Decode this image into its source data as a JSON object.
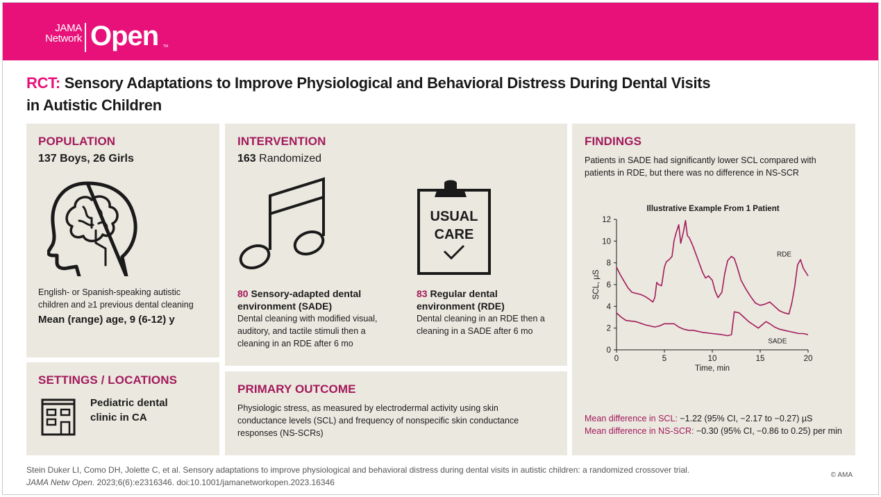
{
  "brand": {
    "top": "JAMA",
    "bottom": "Network",
    "name": "Open",
    "tm": "TM"
  },
  "title": {
    "prefix": "RCT:",
    "line1": "Sensory Adaptations to Improve Physiological and Behavioral Distress During Dental Visits",
    "line2": "in Autistic Children"
  },
  "population": {
    "heading": "POPULATION",
    "counts": "137 Boys, 26 Girls",
    "icon": "head-brain-icon",
    "description": "English- or Spanish-speaking autistic children and ≥1 previous dental cleaning",
    "age": "Mean (range) age, 9 (6-12) y"
  },
  "settings": {
    "heading": "SETTINGS / LOCATIONS",
    "icon": "building-icon",
    "location": "Pediatric dental clinic in CA"
  },
  "intervention": {
    "heading": "INTERVENTION",
    "randomized_n": "163",
    "randomized_label": "Randomized",
    "sade": {
      "icon": "music-note-icon",
      "n": "80",
      "label": "Sensory-adapted dental environment (SADE)",
      "description": "Dental cleaning with modified visual, auditory, and tactile stimuli then a cleaning in an RDE after 6 mo"
    },
    "rde": {
      "icon": "clipboard-check-icon",
      "clipboard_text_1": "USUAL",
      "clipboard_text_2": "CARE",
      "n": "83",
      "label": "Regular dental environment (RDE)",
      "description": "Dental cleaning in an RDE then a cleaning in a SADE after 6 mo"
    }
  },
  "primary_outcome": {
    "heading": "PRIMARY OUTCOME",
    "text": "Physiologic stress, as measured by electrodermal activity using skin conductance levels (SCL) and frequency of nonspecific skin conductance responses (NS-SCRs)"
  },
  "findings": {
    "heading": "FINDINGS",
    "summary": "Patients in SADE had significantly lower SCL compared with patients in RDE, but there was no difference in NS-SCR",
    "result1_label": "Mean difference in SCL:",
    "result1_value": "−1.22 (95% CI, −2.17 to −0.27) µS",
    "result2_label": "Mean difference in NS-SCR:",
    "result2_value": "−0.30 (95% CI, −0.86 to 0.25) per min"
  },
  "chart_data": {
    "type": "line",
    "title": "Illustrative Example From 1 Patient",
    "xlabel": "Time, min",
    "ylabel": "SCL, µS",
    "xlim": [
      0,
      20
    ],
    "ylim": [
      0,
      12
    ],
    "xticks": [
      "0",
      "5",
      "10",
      "15",
      "20"
    ],
    "yticks": [
      "0",
      "2",
      "4",
      "6",
      "8",
      "10",
      "12"
    ],
    "grid": false,
    "line_color": "#a3195b",
    "series": [
      {
        "name": "RDE",
        "x": [
          0,
          0.4,
          0.8,
          1.2,
          1.6,
          2,
          2.5,
          3,
          3.5,
          3.8,
          4,
          4.2,
          4.4,
          4.7,
          5,
          5.2,
          5.5,
          5.8,
          6,
          6.2,
          6.5,
          6.7,
          7,
          7.2,
          7.4,
          7.6,
          8,
          8.5,
          9,
          9.3,
          9.6,
          10,
          10.3,
          10.6,
          11,
          11.3,
          11.6,
          12,
          12.3,
          12.6,
          13,
          13.5,
          14,
          14.5,
          15,
          15.5,
          16,
          16.5,
          17,
          17.5,
          18,
          18.3,
          18.6,
          18.9,
          19.2,
          19.5,
          20
        ],
        "y": [
          7.6,
          6.9,
          6.3,
          5.7,
          5.3,
          5.2,
          5.1,
          4.9,
          4.6,
          4.4,
          4.8,
          6.2,
          6.0,
          5.9,
          7.6,
          8.1,
          8.3,
          8.6,
          10.0,
          10.7,
          11.5,
          9.8,
          10.9,
          11.9,
          10.5,
          10.3,
          9.5,
          8.3,
          7.1,
          6.6,
          6.8,
          6.4,
          5.4,
          4.8,
          5.3,
          7.0,
          8.2,
          8.6,
          8.4,
          7.6,
          6.4,
          5.6,
          4.9,
          4.3,
          4.1,
          4.2,
          4.4,
          4.0,
          3.6,
          3.4,
          3.3,
          4.3,
          5.8,
          7.8,
          8.3,
          7.5,
          6.8
        ]
      },
      {
        "name": "SADE",
        "x": [
          0,
          0.5,
          1,
          2,
          3,
          4,
          4.5,
          5,
          5.5,
          6,
          6.5,
          7,
          7.5,
          8,
          9,
          10,
          11,
          11.6,
          12,
          12.3,
          12.8,
          13.3,
          13.8,
          14.3,
          14.8,
          15.2,
          15.6,
          16,
          16.5,
          17,
          17.5,
          18,
          18.5,
          19,
          19.5,
          20
        ],
        "y": [
          3.4,
          3.0,
          2.7,
          2.6,
          2.3,
          2.1,
          2.2,
          2.4,
          2.4,
          2.4,
          2.1,
          1.9,
          1.8,
          1.8,
          1.6,
          1.5,
          1.4,
          1.3,
          1.4,
          3.5,
          3.4,
          3.0,
          2.6,
          2.3,
          2.0,
          2.3,
          2.6,
          2.4,
          2.1,
          1.9,
          1.8,
          1.7,
          1.6,
          1.5,
          1.5,
          1.4
        ]
      }
    ]
  },
  "citation": {
    "line1": "Stein Duker LI, Como DH, Jolette C, et al. Sensory adaptations to improve physiological and behavioral distress during dental visits in autistic children: a randomized crossover trial.",
    "journal": "JAMA Netw Open",
    "line2_rest": ". 2023;6(6):e2316346. doi:10.1001/jamanetworkopen.2023.16346",
    "copyright": "© AMA"
  }
}
